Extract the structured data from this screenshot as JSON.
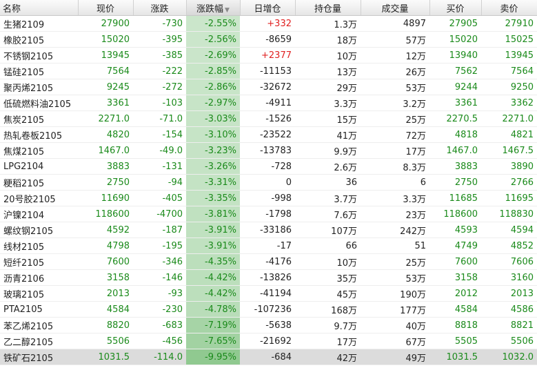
{
  "table": {
    "columns": [
      "名称",
      "现价",
      "涨跌",
      "涨跌幅",
      "日增仓",
      "持仓量",
      "成交量",
      "买价",
      "卖价"
    ],
    "sort_indicator": "▼",
    "rows": [
      [
        "生猪2109",
        "27900",
        "-730",
        "-2.55%",
        "+332",
        "1.3万",
        "4897",
        "27905",
        "27910"
      ],
      [
        "橡胶2105",
        "15020",
        "-395",
        "-2.56%",
        "-8659",
        "18万",
        "57万",
        "15020",
        "15025"
      ],
      [
        "不锈钢2105",
        "13945",
        "-385",
        "-2.69%",
        "+2377",
        "10万",
        "12万",
        "13940",
        "13945"
      ],
      [
        "锰硅2105",
        "7564",
        "-222",
        "-2.85%",
        "-11153",
        "13万",
        "26万",
        "7562",
        "7564"
      ],
      [
        "聚丙烯2105",
        "9245",
        "-272",
        "-2.86%",
        "-32672",
        "29万",
        "53万",
        "9244",
        "9250"
      ],
      [
        "低硫燃料油2105",
        "3361",
        "-103",
        "-2.97%",
        "-4911",
        "3.3万",
        "3.2万",
        "3361",
        "3362"
      ],
      [
        "焦炭2105",
        "2271.0",
        "-71.0",
        "-3.03%",
        "-1526",
        "15万",
        "25万",
        "2270.5",
        "2271.0"
      ],
      [
        "热轧卷板2105",
        "4820",
        "-154",
        "-3.10%",
        "-23522",
        "41万",
        "72万",
        "4818",
        "4821"
      ],
      [
        "焦煤2105",
        "1467.0",
        "-49.0",
        "-3.23%",
        "-13783",
        "9.9万",
        "17万",
        "1467.0",
        "1467.5"
      ],
      [
        "LPG2104",
        "3883",
        "-131",
        "-3.26%",
        "-728",
        "2.6万",
        "8.3万",
        "3883",
        "3890"
      ],
      [
        "粳稻2105",
        "2750",
        "-94",
        "-3.31%",
        "0",
        "36",
        "6",
        "2750",
        "2766"
      ],
      [
        "20号胶2105",
        "11690",
        "-405",
        "-3.35%",
        "-998",
        "3.7万",
        "3.3万",
        "11685",
        "11695"
      ],
      [
        "沪镍2104",
        "118600",
        "-4700",
        "-3.81%",
        "-1798",
        "7.6万",
        "23万",
        "118600",
        "118830"
      ],
      [
        "螺纹钢2105",
        "4592",
        "-187",
        "-3.91%",
        "-33186",
        "107万",
        "242万",
        "4593",
        "4594"
      ],
      [
        "线材2105",
        "4798",
        "-195",
        "-3.91%",
        "-17",
        "66",
        "51",
        "4749",
        "4852"
      ],
      [
        "短纤2105",
        "7600",
        "-346",
        "-4.35%",
        "-4176",
        "10万",
        "25万",
        "7600",
        "7606"
      ],
      [
        "沥青2106",
        "3158",
        "-146",
        "-4.42%",
        "-13826",
        "35万",
        "53万",
        "3158",
        "3160"
      ],
      [
        "玻璃2105",
        "2013",
        "-93",
        "-4.42%",
        "-41194",
        "45万",
        "190万",
        "2012",
        "2013"
      ],
      [
        "PTA2105",
        "4584",
        "-230",
        "-4.78%",
        "-107236",
        "168万",
        "177万",
        "4584",
        "4586"
      ],
      [
        "苯乙烯2105",
        "8820",
        "-683",
        "-7.19%",
        "-5638",
        "9.7万",
        "40万",
        "8818",
        "8821"
      ],
      [
        "乙二醇2105",
        "5506",
        "-456",
        "-7.65%",
        "-21692",
        "17万",
        "67万",
        "5505",
        "5506"
      ],
      [
        "铁矿石2105",
        "1031.5",
        "-114.0",
        "-9.95%",
        "-684",
        "42万",
        "49万",
        "1031.5",
        "1032.0"
      ]
    ]
  }
}
